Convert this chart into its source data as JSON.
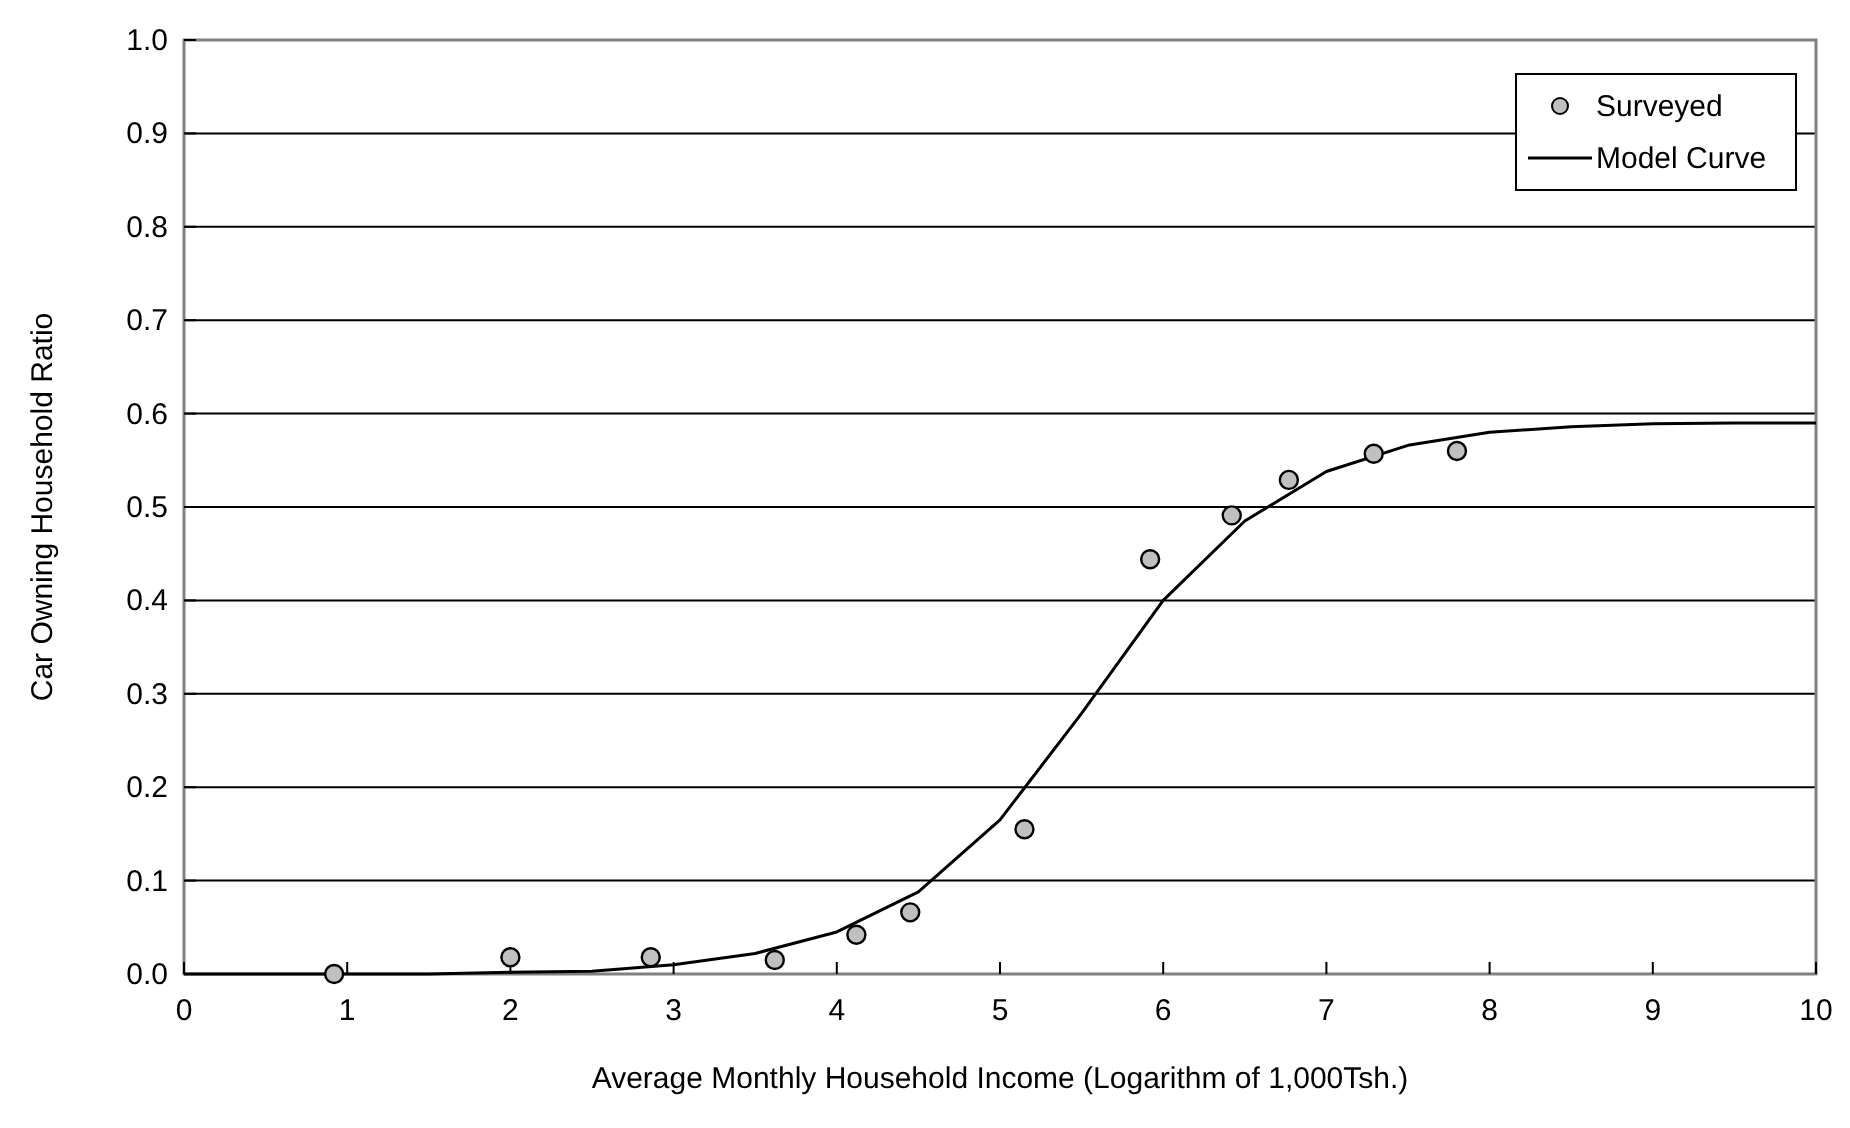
{
  "chart_data": {
    "type": "scatter",
    "xlabel": "Average Monthly Household Income (Logarithm of 1,000Tsh.)",
    "ylabel": "Car Owning Household Ratio",
    "xlim": [
      0,
      10
    ],
    "xticks": [
      0,
      1,
      2,
      3,
      4,
      5,
      6,
      7,
      8,
      9,
      10
    ],
    "ylim": [
      0,
      1
    ],
    "yticks": [
      {
        "value": 0,
        "label": "0.0"
      },
      {
        "value": 0.1,
        "label": "0.1"
      },
      {
        "value": 0.2,
        "label": "0.2"
      },
      {
        "value": 0.3,
        "label": "0.3"
      },
      {
        "value": 0.4,
        "label": "0.4"
      },
      {
        "value": 0.5,
        "label": "0.5"
      },
      {
        "value": 0.6,
        "label": "0.6"
      },
      {
        "value": 0.7,
        "label": "0.7"
      },
      {
        "value": 0.8,
        "label": "0.8"
      },
      {
        "value": 0.9,
        "label": "0.9"
      },
      {
        "value": 1,
        "label": "1.0"
      }
    ],
    "grid": "y",
    "legend": "top right",
    "series": [
      {
        "name": "Surveyed",
        "color": "#c0c0c0",
        "marker": "circle",
        "x": [
          0.92,
          2.0,
          2.86,
          3.62,
          4.12,
          4.45,
          5.15,
          5.92,
          6.42,
          6.77,
          7.29,
          7.8
        ],
        "values": [
          0.0,
          0.018,
          0.018,
          0.015,
          0.042,
          0.066,
          0.155,
          0.444,
          0.491,
          0.529,
          0.557,
          0.56
        ]
      },
      {
        "name": "Model Curve",
        "type": "line",
        "color": "#000000",
        "marker": "none",
        "line_style": "solid",
        "x": [
          0,
          0.5,
          1,
          1.5,
          2,
          2.5,
          3,
          3.5,
          4,
          4.5,
          5,
          5.5,
          6,
          6.5,
          7,
          7.5,
          8,
          8.5,
          9,
          9.5,
          10
        ],
        "values": [
          0,
          0,
          0,
          0,
          0.002,
          0.003,
          0.01,
          0.022,
          0.045,
          0.088,
          0.165,
          0.279,
          0.4,
          0.485,
          0.538,
          0.566,
          0.58,
          0.586,
          0.589,
          0.59,
          0.59
        ]
      }
    ]
  }
}
